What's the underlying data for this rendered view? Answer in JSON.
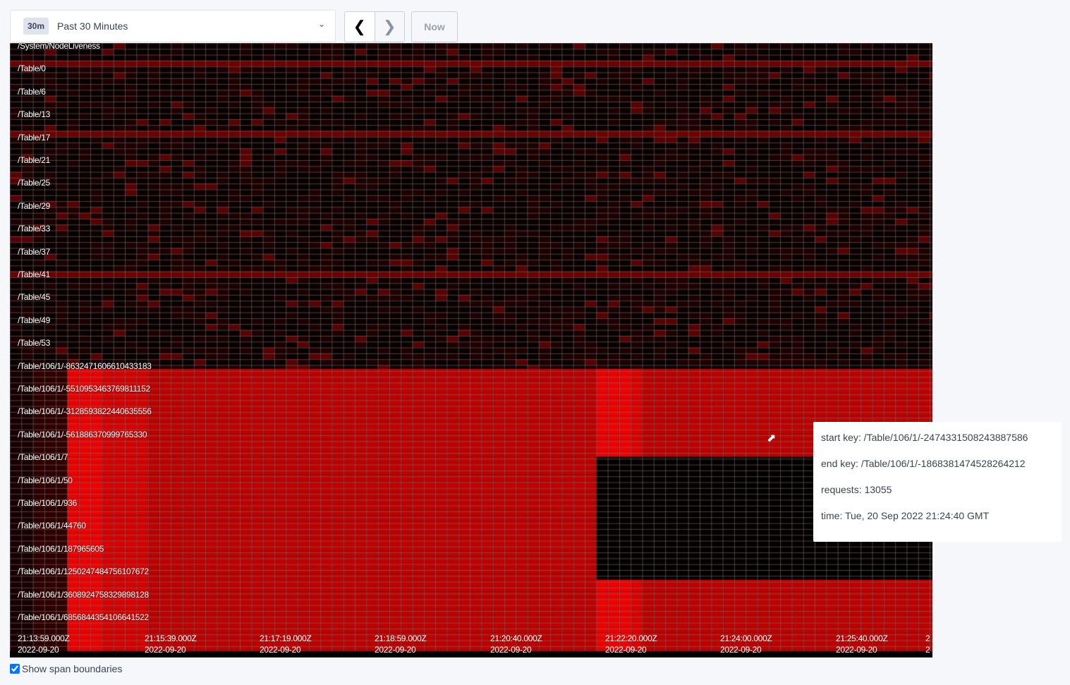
{
  "time_range": {
    "badge": "30m",
    "label": "Past 30 Minutes"
  },
  "nav": {
    "prev_icon": "chevron-left-icon",
    "next_icon": "chevron-right-icon",
    "now_label": "Now"
  },
  "heatmap": {
    "key_labels": [
      "/System/NodeLiveness",
      "/Table/0",
      "/Table/6",
      "/Table/13",
      "/Table/17",
      "/Table/21",
      "/Table/25",
      "/Table/29",
      "/Table/33",
      "/Table/37",
      "/Table/41",
      "/Table/45",
      "/Table/49",
      "/Table/53",
      "/Table/106/1/-8632471606610433183",
      "/Table/106/1/-5510953463769811152",
      "/Table/106/1/-3128593822440635556",
      "/Table/106/1/-561886370999765330",
      "/Table/106/1/7",
      "/Table/106/1/50",
      "/Table/106/1/936",
      "/Table/106/1/44760",
      "/Table/106/1/187965605",
      "/Table/106/1/1250247484756107672",
      "/Table/106/1/3608924758329898128",
      "/Table/106/1/6856844354106641522"
    ],
    "time_labels": [
      {
        "time": "21:13:59.000Z",
        "date": "2022-09-20"
      },
      {
        "time": "21:15:39.000Z",
        "date": "2022-09-20"
      },
      {
        "time": "21:17:19.000Z",
        "date": "2022-09-20"
      },
      {
        "time": "21:18:59.000Z",
        "date": "2022-09-20"
      },
      {
        "time": "21:20:40.000Z",
        "date": "2022-09-20"
      },
      {
        "time": "21:22:20.000Z",
        "date": "2022-09-20"
      },
      {
        "time": "21:24:00.000Z",
        "date": "2022-09-20"
      },
      {
        "time": "21:25:40.000Z",
        "date": "2022-09-20"
      },
      {
        "time": "2",
        "date": "2"
      }
    ],
    "colors": {
      "background": "#000000",
      "hot": "#ff0000",
      "grid": "#555555"
    }
  },
  "tooltip": {
    "start_key": "start key: /Table/106/1/-2474331508243887586",
    "end_key": "end key: /Table/106/1/-1868381474528264212",
    "requests": "requests: 13055",
    "time": "time: Tue, 20 Sep 2022 21:24:40 GMT"
  },
  "show_span_boundaries": {
    "label": "Show span boundaries",
    "checked": true
  }
}
